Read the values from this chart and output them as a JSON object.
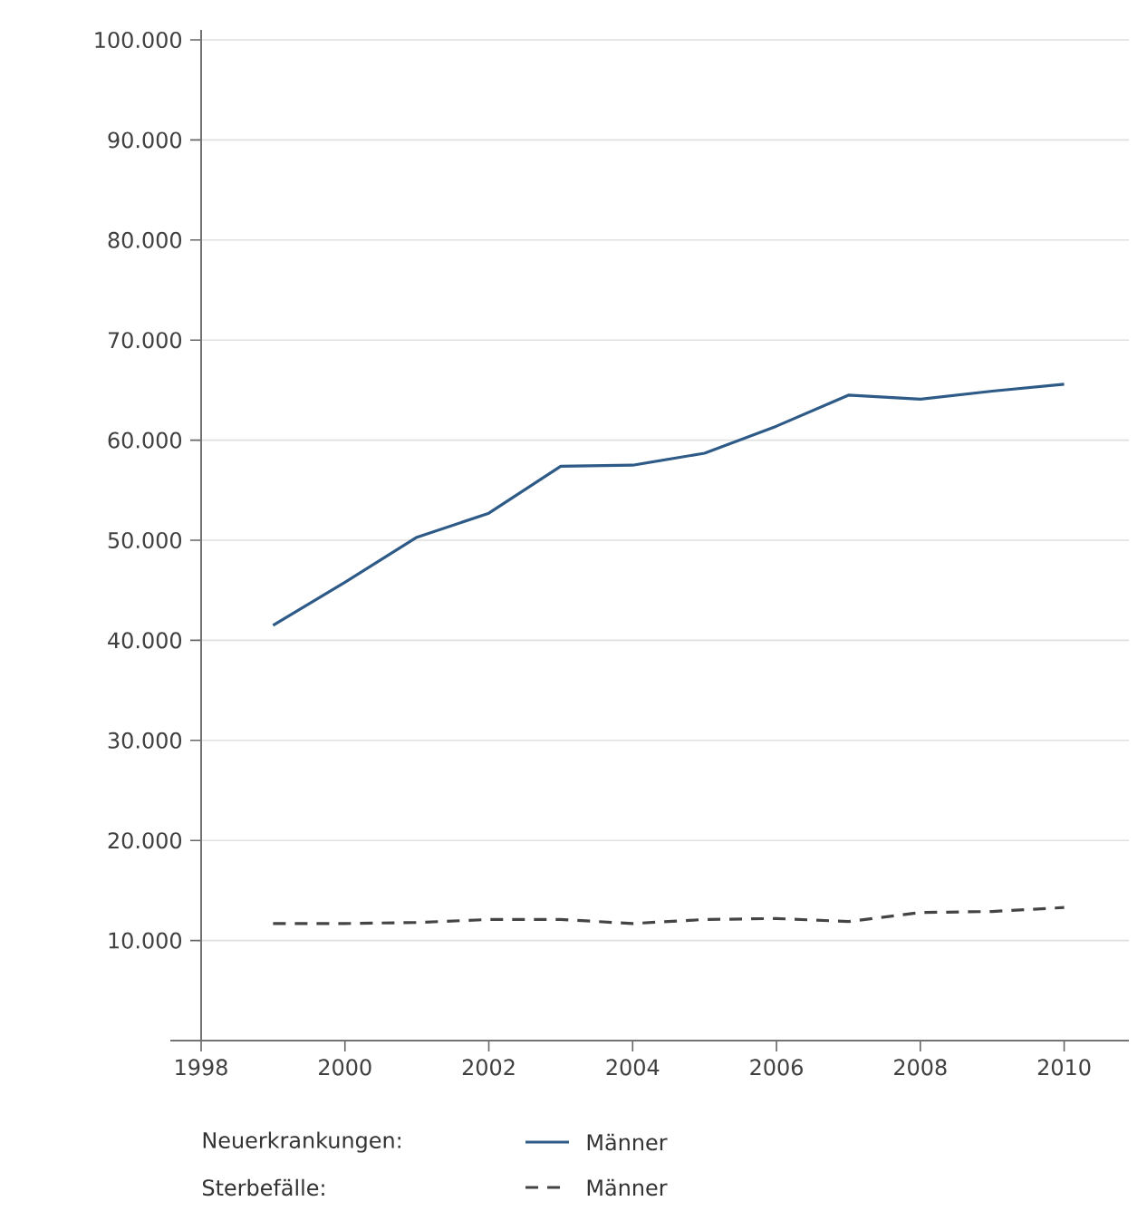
{
  "chart_data": {
    "type": "line",
    "x": [
      1999,
      2000,
      2001,
      2002,
      2003,
      2004,
      2005,
      2006,
      2007,
      2008,
      2009,
      2010
    ],
    "series": [
      {
        "name": "Männer",
        "color": "#2e5a87",
        "line_style": "solid",
        "values": [
          41500,
          45800,
          50300,
          52700,
          57400,
          57500,
          58700,
          61400,
          64500,
          64100,
          64900,
          65600
        ]
      },
      {
        "name": "Männer",
        "color": "#444444",
        "line_style": "dashed",
        "values": [
          11700,
          11700,
          11800,
          12100,
          12100,
          11700,
          12100,
          12200,
          11900,
          12800,
          12900,
          13300
        ]
      }
    ],
    "annotations": [
      "Neuerkrankungen:",
      "Sterbefälle:"
    ],
    "xlim": [
      1998,
      2010.9
    ],
    "ylim": [
      0,
      101000
    ],
    "xticks": [
      1998,
      2000,
      2002,
      2004,
      2006,
      2008,
      2010
    ],
    "yticks": [
      {
        "value": 10000,
        "label": "10.000"
      },
      {
        "value": 20000,
        "label": "20.000"
      },
      {
        "value": 30000,
        "label": "30.000"
      },
      {
        "value": 40000,
        "label": "40.000"
      },
      {
        "value": 50000,
        "label": "50.000"
      },
      {
        "value": 60000,
        "label": "60.000"
      },
      {
        "value": 70000,
        "label": "70.000"
      },
      {
        "value": 80000,
        "label": "80.000"
      },
      {
        "value": 90000,
        "label": "90.000"
      },
      {
        "value": 100000,
        "label": "100.000"
      }
    ],
    "grid": "y",
    "legend": "bottom",
    "marker": "none"
  }
}
